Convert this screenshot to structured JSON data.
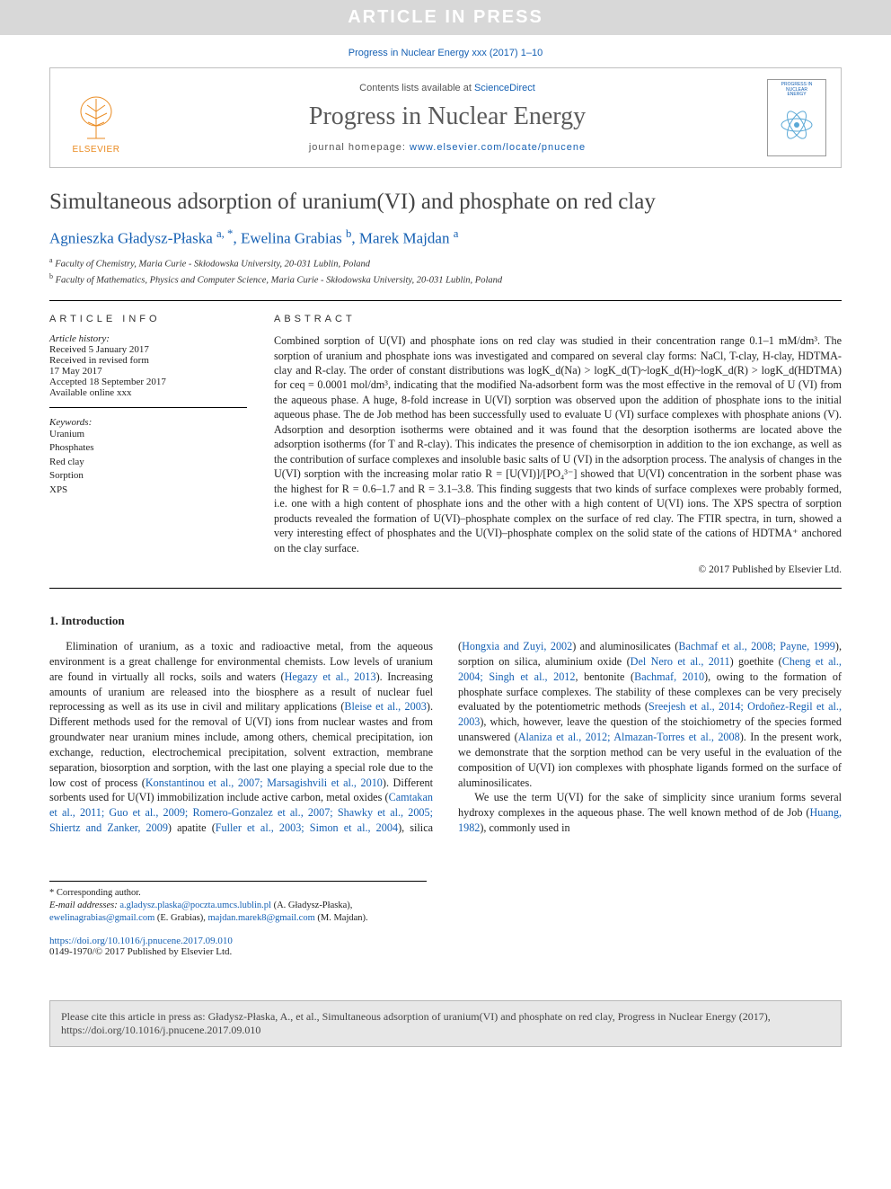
{
  "banner": {
    "text": "ARTICLE IN PRESS"
  },
  "citation_top": "Progress in Nuclear Energy xxx (2017) 1–10",
  "masthead": {
    "contents_prefix": "Contents lists available at ",
    "contents_link": "ScienceDirect",
    "journal": "Progress in Nuclear Energy",
    "homepage_prefix": "journal homepage: ",
    "homepage_link": "www.elsevier.com/locate/pnucene",
    "publisher_word": "ELSEVIER",
    "cover_line1": "PROGRESS IN",
    "cover_line2": "NUCLEAR",
    "cover_line3": "ENERGY"
  },
  "title": "Simultaneous adsorption of uranium(VI) and phosphate on red clay",
  "authors_html": "Agnieszka Gładysz-Płaska <sup>a, *</sup>, Ewelina Grabias <sup>b</sup>, Marek Majdan <sup>a</sup>",
  "affiliations": [
    {
      "sup": "a",
      "text": "Faculty of Chemistry, Maria Curie - Skłodowska University, 20-031 Lublin, Poland"
    },
    {
      "sup": "b",
      "text": "Faculty of Mathematics, Physics and Computer Science, Maria Curie - Skłodowska University, 20-031 Lublin, Poland"
    }
  ],
  "article_info": {
    "head": "ARTICLE INFO",
    "history_label": "Article history:",
    "history": [
      "Received 5 January 2017",
      "Received in revised form",
      "17 May 2017",
      "Accepted 18 September 2017",
      "Available online xxx"
    ],
    "keywords_label": "Keywords:",
    "keywords": [
      "Uranium",
      "Phosphates",
      "Red clay",
      "Sorption",
      "XPS"
    ]
  },
  "abstract": {
    "head": "ABSTRACT",
    "body": "Combined sorption of U(VI) and phosphate ions on red clay was studied in their concentration range 0.1–1 mM/dm³. The sorption of uranium and phosphate ions was investigated and compared on several clay forms: NaCl, T-clay, H-clay, HDTMA-clay and R-clay. The order of constant distributions was logK_d(Na) > logK_d(T)~logK_d(H)~logK_d(R) > logK_d(HDTMA) for ceq = 0.0001 mol/dm³, indicating that the modified Na-adsorbent form was the most effective in the removal of U (VI) from the aqueous phase. A huge, 8-fold increase in U(VI) sorption was observed upon the addition of phosphate ions to the initial aqueous phase. The de Job method has been successfully used to evaluate U (VI) surface complexes with phosphate anions (V). Adsorption and desorption isotherms were obtained and it was found that the desorption isotherms are located above the adsorption isotherms (for T and R-clay). This indicates the presence of chemisorption in addition to the ion exchange, as well as the contribution of surface complexes and insoluble basic salts of U (VI) in the adsorption process. The analysis of changes in the U(VI) sorption with the increasing molar ratio R = [U(VI)]/[PO₄³⁻] showed that U(VI) concentration in the sorbent phase was the highest for R = 0.6–1.7 and R = 3.1–3.8. This finding suggests that two kinds of surface complexes were probably formed, i.e. one with a high content of phosphate ions and the other with a high content of U(VI) ions. The XPS spectra of sorption products revealed the formation of U(VI)–phosphate complex on the surface of red clay. The FTIR spectra, in turn, showed a very interesting effect of phosphates and the U(VI)–phosphate complex on the solid state of the cations of HDTMA⁺ anchored on the clay surface.",
    "copyright": "© 2017 Published by Elsevier Ltd."
  },
  "intro": {
    "head": "1. Introduction",
    "p1a": "Elimination of uranium, as a toxic and radioactive metal, from the aqueous environment is a great challenge for environmental chemists. Low levels of uranium are found in virtually all rocks, soils and waters (",
    "r1": "Hegazy et al., 2013",
    "p1b": "). Increasing amounts of uranium are released into the biosphere as a result of nuclear fuel reprocessing as well as its use in civil and military applications (",
    "r2": "Bleise et al., 2003",
    "p1c": "). Different methods used for the removal of U(VI) ions from nuclear wastes and from groundwater near uranium mines include, among others, chemical precipitation, ion exchange, reduction, electrochemical precipitation, solvent extraction, membrane separation, biosorption and sorption, with the last one playing a special role due to the low cost of process (",
    "r3": "Konstantinou et al., 2007; Marsagishvili et al., 2010",
    "p1d": "). Different sorbents used for U(VI) ",
    "p2a": "immobilization include active carbon, metal oxides (",
    "r4": "Camtakan et al., 2011; Guo et al., 2009; Romero-Gonzalez et al., 2007; Shawky et al., 2005; Shiertz and Zanker, 2009",
    "p2b": ") apatite (",
    "r5": "Fuller et al., 2003; Simon et al., 2004",
    "p2c": "), silica (",
    "r6": "Hongxia and Zuyi, 2002",
    "p2d": ") and aluminosilicates (",
    "r7": "Bachmaf et al., 2008; Payne, 1999",
    "p2e": "), sorption on silica, aluminium oxide (",
    "r8": "Del Nero et al., 2011",
    "p2f": ") goethite (",
    "r9": "Cheng et al., 2004; Singh et al., 2012",
    "p2g": ", bentonite (",
    "r10": "Bachmaf, 2010",
    "p2h": "), owing to the formation of phosphate surface complexes. The stability of these complexes can be very precisely evaluated by the potentiometric methods (",
    "r11": "Sreejesh et al., 2014; Ordoñez-Regil et al., 2003",
    "p2i": "), which, however, leave the question of the stoichiometry of the species formed unanswered (",
    "r12": "Alaniza et al., 2012; Almazan-Torres et al., 2008",
    "p2j": "). In the present work, we demonstrate that the sorption method can be very useful in the evaluation of the composition of U(VI) ion complexes with phosphate ligands formed on the surface of aluminosilicates.",
    "p3a": "We use the term U(VI) for the sake of simplicity since uranium forms several hydroxy complexes in the aqueous phase. The well known method of de Job (",
    "r13": "Huang, 1982",
    "p3b": "), commonly used in"
  },
  "footnotes": {
    "corr": "* Corresponding author.",
    "email_label": "E-mail addresses:",
    "e1": "a.gladysz.plaska@poczta.umcs.lublin.pl",
    "n1": " (A. Gładysz-Płaska), ",
    "e2": "ewelinagrabias@gmail.com",
    "n2": " (E. Grabias), ",
    "e3": "majdan.marek8@gmail.com",
    "n3": " (M. Majdan)."
  },
  "doi": {
    "link": "https://doi.org/10.1016/j.pnucene.2017.09.010",
    "issn": "0149-1970/© 2017 Published by Elsevier Ltd."
  },
  "citebox": "Please cite this article in press as: Gładysz-Płaska, A., et al., Simultaneous adsorption of uranium(VI) and phosphate on red clay, Progress in Nuclear Energy (2017), https://doi.org/10.1016/j.pnucene.2017.09.010",
  "colors": {
    "link": "#1560b3",
    "banner_bg": "#d8d8d8",
    "elsevier_orange": "#ea8a1f",
    "rule": "#000000",
    "citebox_bg": "#e7e7e7"
  }
}
